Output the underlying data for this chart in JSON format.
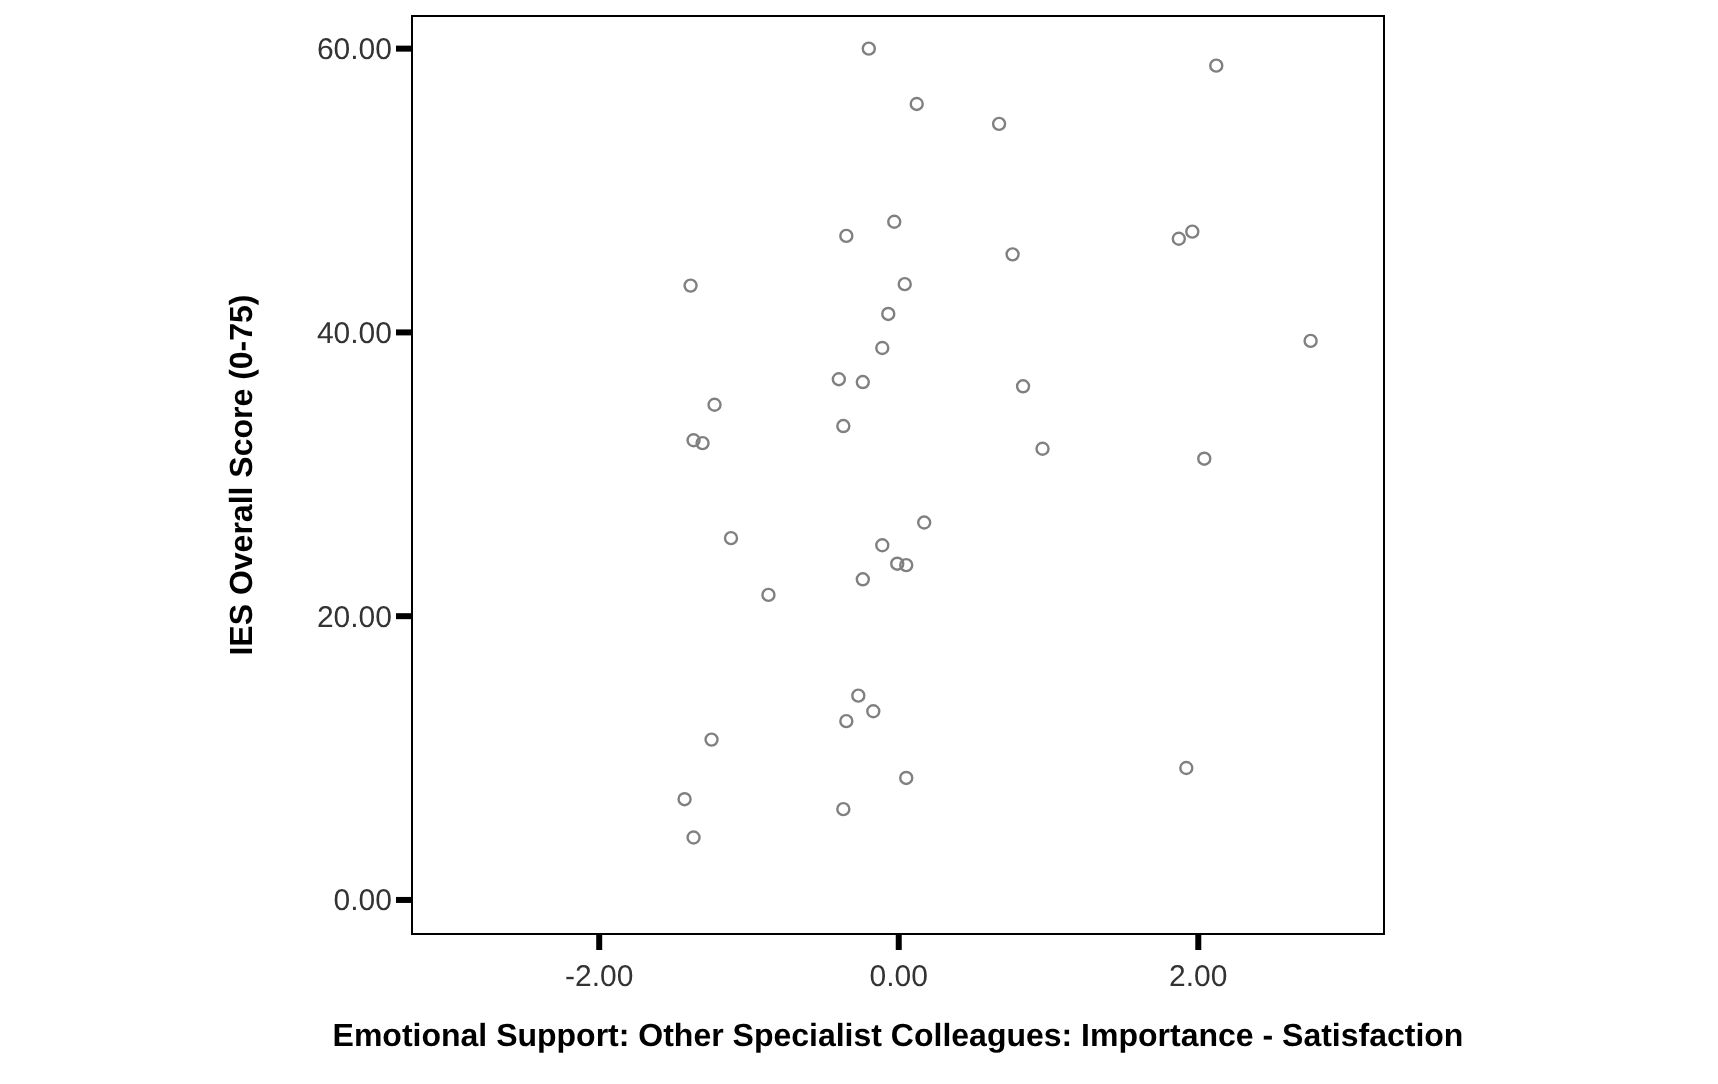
{
  "chart_data": {
    "type": "scatter",
    "xlabel": "Emotional Support: Other Specialist Colleagues: Importance - Satisfaction",
    "ylabel": "IES Overall Score (0-75)",
    "xlim": [
      -3.25,
      3.24
    ],
    "ylim": [
      -2.4,
      62.3
    ],
    "xticks": [
      {
        "value": -2,
        "label": "-2.00"
      },
      {
        "value": 0,
        "label": "0.00"
      },
      {
        "value": 2,
        "label": "2.00"
      }
    ],
    "yticks": [
      {
        "value": 0,
        "label": "0.00"
      },
      {
        "value": 20,
        "label": "20.00"
      },
      {
        "value": 40,
        "label": "40.00"
      },
      {
        "value": 60,
        "label": "60.00"
      }
    ],
    "grid": false,
    "marker": "circle",
    "series": [
      {
        "color": "#808080",
        "x": [
          -0.2,
          0.12,
          0.67,
          2.12,
          -0.35,
          -0.03,
          0.76,
          1.87,
          1.96,
          -1.39,
          0.04,
          -0.07,
          2.75,
          -0.11,
          -0.4,
          -0.24,
          0.83,
          -1.23,
          -0.37,
          -1.37,
          -1.31,
          0.96,
          2.04,
          -1.12,
          -0.87,
          0.17,
          -0.11,
          -0.01,
          0.05,
          -0.24,
          -0.27,
          -0.17,
          -0.35,
          -1.25,
          1.92,
          0.05,
          -1.43,
          -0.37,
          -1.37
        ],
        "values": [
          60.0,
          56.1,
          54.7,
          58.8,
          46.8,
          47.8,
          45.5,
          46.6,
          47.1,
          43.3,
          43.4,
          41.3,
          39.4,
          38.9,
          36.7,
          36.5,
          36.2,
          34.9,
          33.4,
          32.4,
          32.2,
          31.8,
          31.1,
          25.5,
          21.5,
          26.6,
          25.0,
          23.7,
          23.6,
          22.6,
          14.4,
          13.3,
          12.6,
          11.3,
          9.3,
          8.6,
          7.1,
          6.4,
          4.4
        ]
      }
    ]
  }
}
